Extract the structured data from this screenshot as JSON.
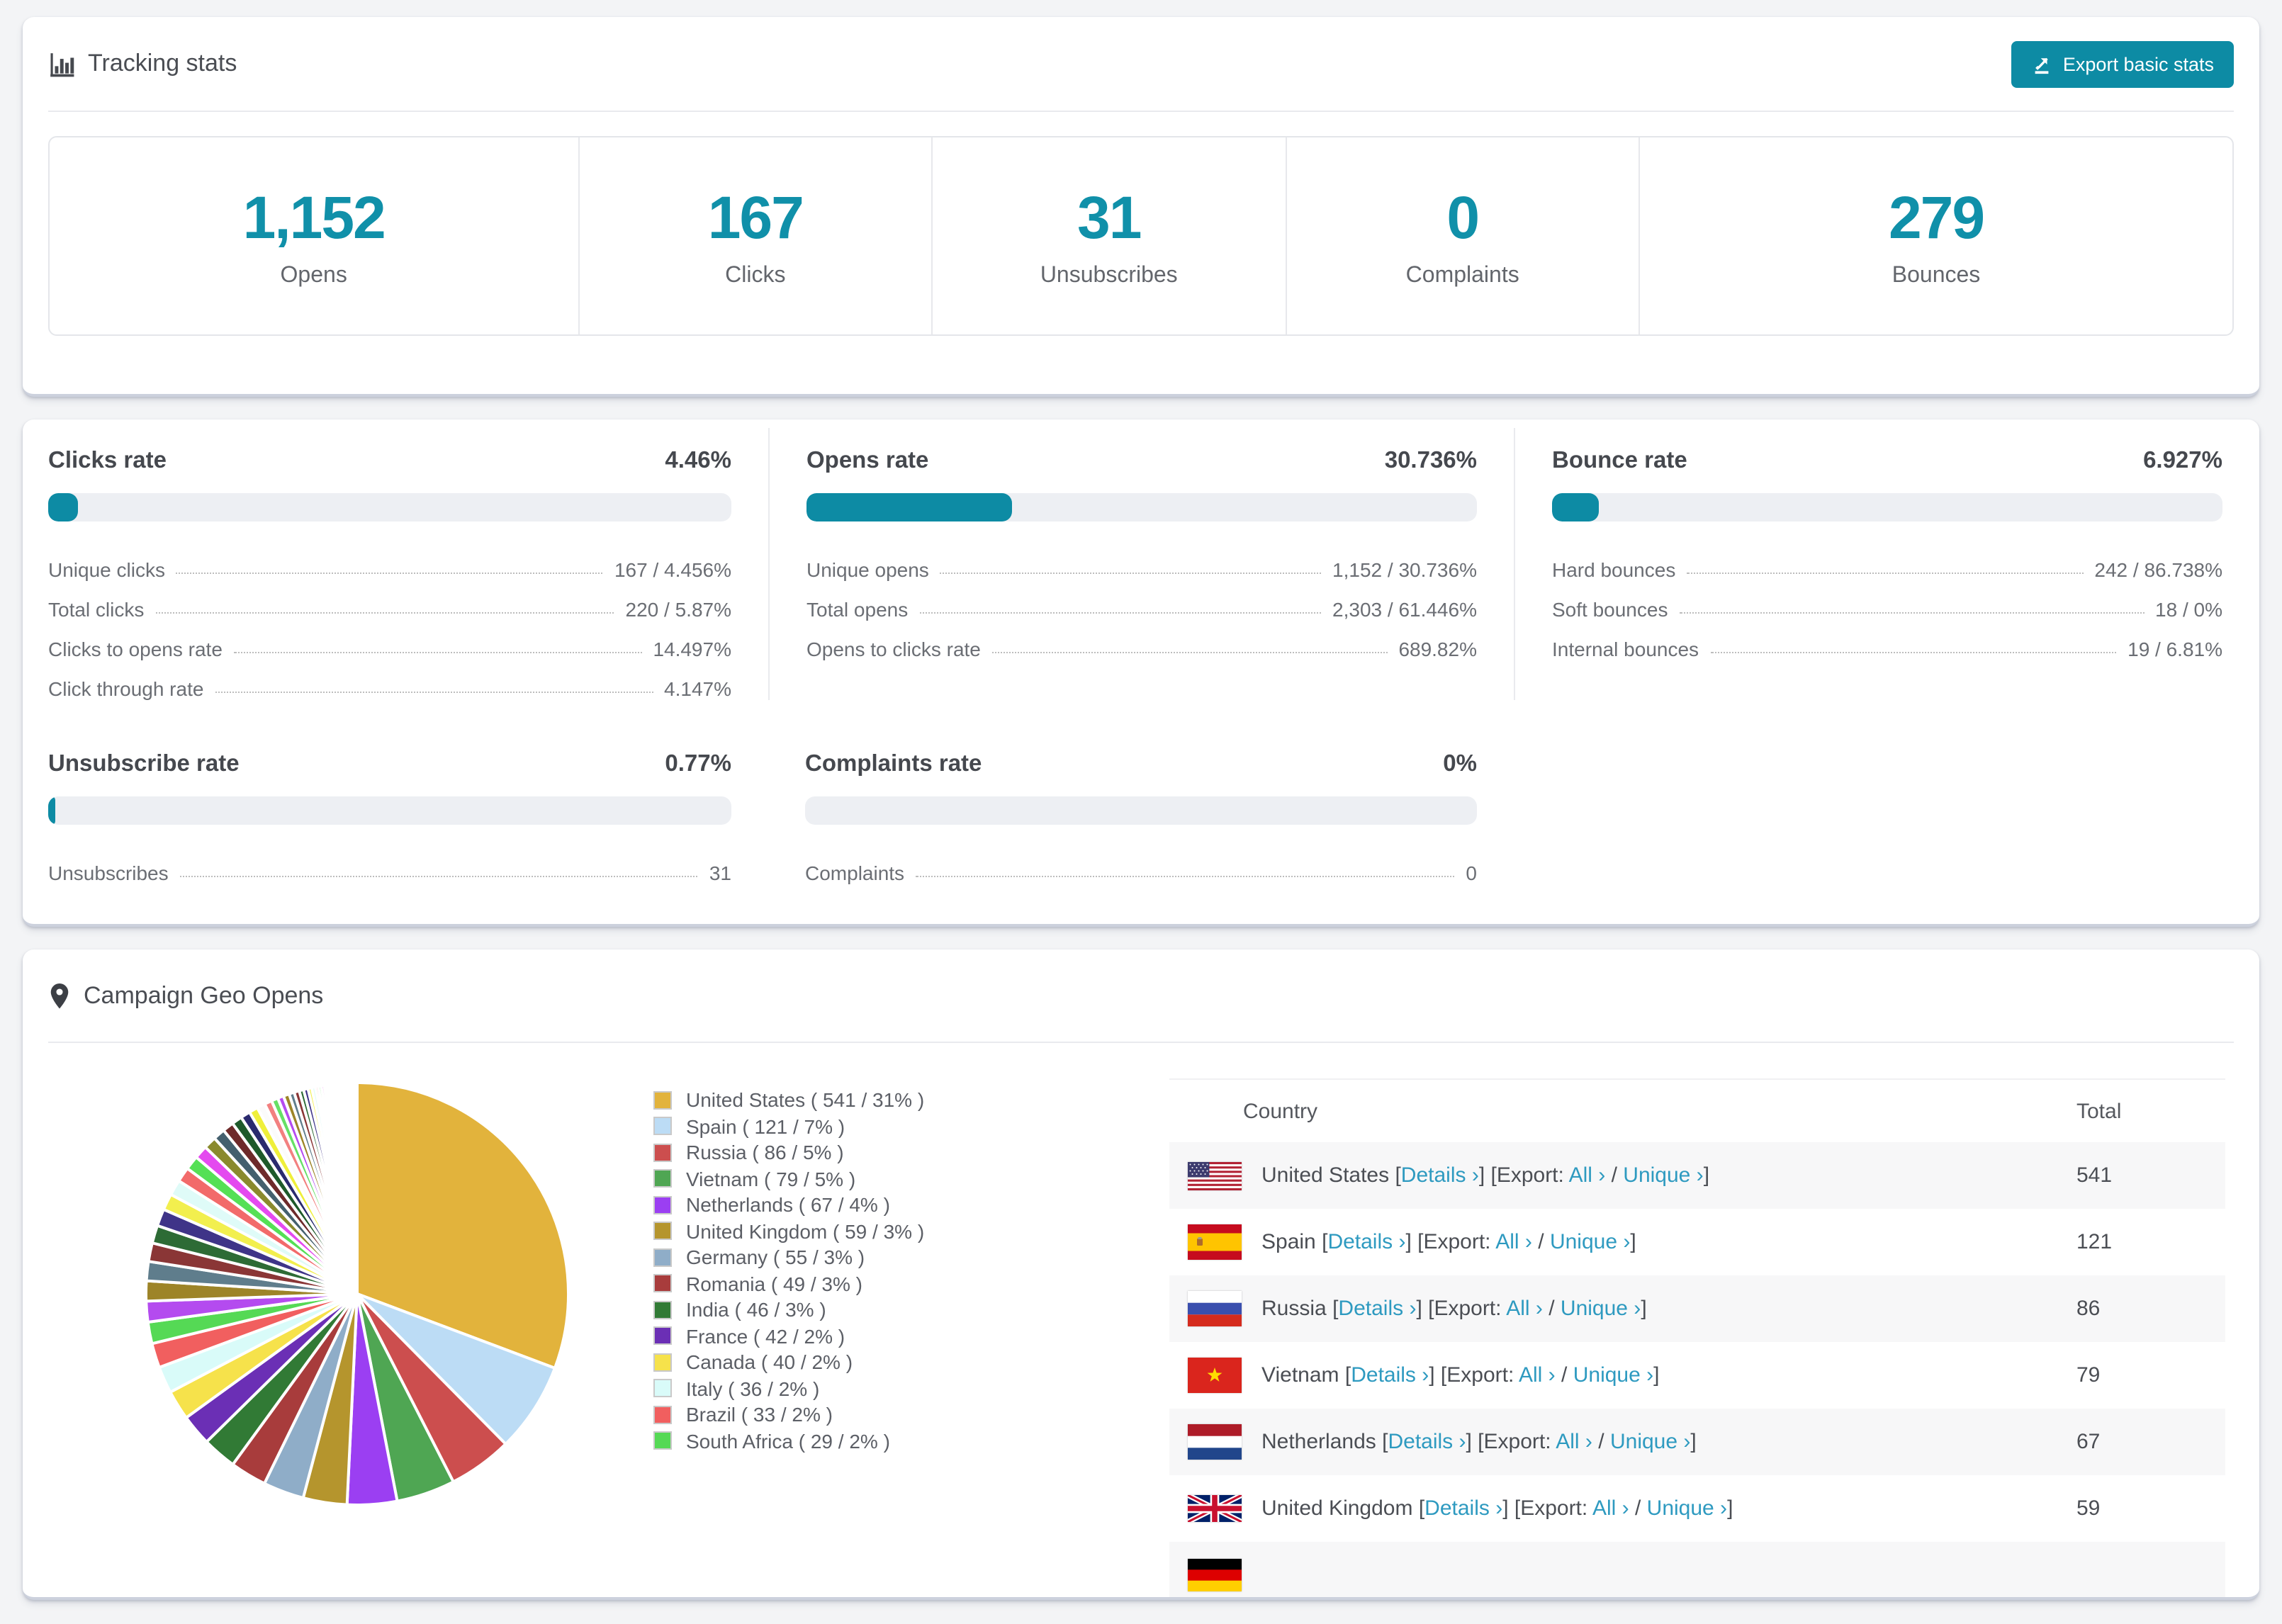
{
  "theme": {
    "accent": "#0d8ba4",
    "big_number_color": "#1090a9",
    "link_color": "#2e9ac0",
    "page_bg": "#f3f4f6",
    "card_bg": "#ffffff",
    "bar_track": "#edeff3"
  },
  "tracking": {
    "title": "Tracking stats",
    "export_button_label": "Export basic stats",
    "stats": [
      {
        "value": "1,152",
        "label": "Opens"
      },
      {
        "value": "167",
        "label": "Clicks"
      },
      {
        "value": "31",
        "label": "Unsubscribes"
      },
      {
        "value": "0",
        "label": "Complaints"
      },
      {
        "value": "279",
        "label": "Bounces"
      }
    ]
  },
  "rates": {
    "row1": [
      {
        "title": "Clicks rate",
        "value": "4.46%",
        "pct": 4.46,
        "rows": [
          {
            "label": "Unique clicks",
            "value": "167 / 4.456%"
          },
          {
            "label": "Total clicks",
            "value": "220 / 5.87%"
          },
          {
            "label": "Clicks to opens rate",
            "value": "14.497%"
          },
          {
            "label": "Click through rate",
            "value": "4.147%"
          }
        ]
      },
      {
        "title": "Opens rate",
        "value": "30.736%",
        "pct": 30.736,
        "rows": [
          {
            "label": "Unique opens",
            "value": "1,152 / 30.736%"
          },
          {
            "label": "Total opens",
            "value": "2,303 / 61.446%"
          },
          {
            "label": "Opens to clicks rate",
            "value": "689.82%"
          }
        ]
      },
      {
        "title": "Bounce rate",
        "value": "6.927%",
        "pct": 6.927,
        "rows": [
          {
            "label": "Hard bounces",
            "value": "242 / 86.738%"
          },
          {
            "label": "Soft bounces",
            "value": "18 / 0%"
          },
          {
            "label": "Internal bounces",
            "value": "19 / 6.81%"
          }
        ]
      }
    ],
    "row2": [
      {
        "title": "Unsubscribe rate",
        "value": "0.77%",
        "pct": 0.77,
        "rows": [
          {
            "label": "Unsubscribes",
            "value": "31"
          }
        ]
      },
      {
        "title": "Complaints rate",
        "value": "0%",
        "pct": 0,
        "rows": [
          {
            "label": "Complaints",
            "value": "0"
          }
        ]
      }
    ]
  },
  "geo": {
    "title": "Campaign Geo Opens",
    "table": {
      "country_header": "Country",
      "total_header": "Total",
      "details_label": "Details ›",
      "export_prefix": "[Export:",
      "all_label": "All ›",
      "unique_label": "Unique ›",
      "slash": "/",
      "rows": [
        {
          "country": "United States",
          "flag": "us",
          "total": "541",
          "partial": false
        },
        {
          "country": "Spain",
          "flag": "es",
          "total": "121",
          "partial": false
        },
        {
          "country": "Russia",
          "flag": "ru",
          "total": "86",
          "partial": false
        },
        {
          "country": "Vietnam",
          "flag": "vn",
          "total": "79",
          "partial": false
        },
        {
          "country": "Netherlands",
          "flag": "nl",
          "total": "67",
          "partial": false
        },
        {
          "country": "United Kingdom",
          "flag": "gb",
          "total": "59",
          "partial": false
        },
        {
          "country": "",
          "flag": "de",
          "total": "",
          "partial": true
        }
      ]
    }
  },
  "chart_data": {
    "type": "pie",
    "title": "Campaign Geo Opens",
    "legend_position": "right",
    "start_angle_deg": -90,
    "direction": "clockwise",
    "series": [
      {
        "name": "United States",
        "value": 541,
        "pct": 31,
        "color": "#e2b33c"
      },
      {
        "name": "Spain",
        "value": 121,
        "pct": 7,
        "color": "#bcdcf5"
      },
      {
        "name": "Russia",
        "value": 86,
        "pct": 5,
        "color": "#cc4e4e"
      },
      {
        "name": "Vietnam",
        "value": 79,
        "pct": 5,
        "color": "#4fa653"
      },
      {
        "name": "Netherlands",
        "value": 67,
        "pct": 4,
        "color": "#9b3ff2"
      },
      {
        "name": "United Kingdom",
        "value": 59,
        "pct": 3,
        "color": "#b5952d"
      },
      {
        "name": "Germany",
        "value": 55,
        "pct": 3,
        "color": "#8fadc8"
      },
      {
        "name": "Romania",
        "value": 49,
        "pct": 3,
        "color": "#a83c3c"
      },
      {
        "name": "India",
        "value": 46,
        "pct": 3,
        "color": "#317a35"
      },
      {
        "name": "France",
        "value": 42,
        "pct": 2,
        "color": "#6b2fb5"
      },
      {
        "name": "Canada",
        "value": 40,
        "pct": 2,
        "color": "#f6e24b"
      },
      {
        "name": "Italy",
        "value": 36,
        "pct": 2,
        "color": "#d9fbf9"
      },
      {
        "name": "Brazil",
        "value": 33,
        "pct": 2,
        "color": "#f15f5f"
      },
      {
        "name": "South Africa",
        "value": 29,
        "pct": 2,
        "color": "#55d955"
      }
    ],
    "others_estimated_values": [
      28,
      27,
      26,
      25,
      24,
      23,
      22,
      21,
      20,
      19,
      18,
      17,
      16,
      15,
      14,
      13,
      12,
      11,
      10,
      9,
      8,
      8,
      7,
      7,
      6,
      6,
      5,
      5,
      4,
      4,
      4,
      3,
      3,
      3,
      3,
      2,
      2,
      2,
      2,
      2,
      2,
      2,
      1,
      1,
      1,
      1,
      1,
      1,
      1,
      1,
      1,
      1,
      1,
      1,
      1,
      1,
      1,
      1,
      1,
      1
    ],
    "others_palette": [
      "#b44bef",
      "#9d8428",
      "#5f7d8c",
      "#8a3636",
      "#2d6b35",
      "#3f3488",
      "#f2ef4e",
      "#dffbf8",
      "#f26a6a",
      "#55e055",
      "#e44aef",
      "#8a8a2d",
      "#44606e",
      "#6e2a2a",
      "#1f5a2a",
      "#2a2a6e",
      "#efef3a",
      "#fbfbfb",
      "#f28080",
      "#66e066"
    ]
  }
}
